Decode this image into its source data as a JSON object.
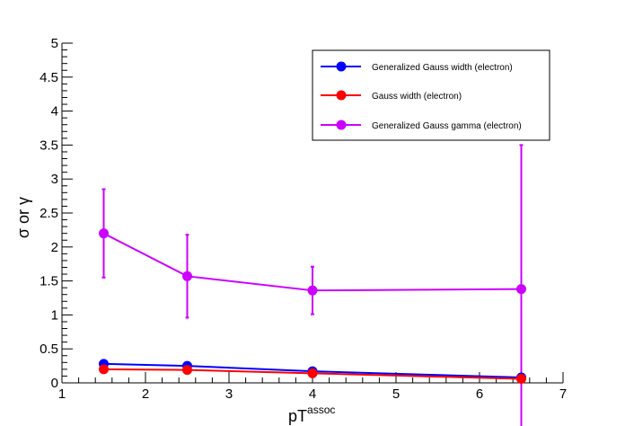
{
  "chart_data": {
    "type": "line",
    "title": "",
    "xlabel": "pT",
    "xlabel_superscript": "assoc",
    "ylabel": "σ or γ",
    "xlim": [
      1,
      7
    ],
    "ylim": [
      0,
      5
    ],
    "x_ticks": [
      "1",
      "2",
      "3",
      "4",
      "5",
      "6",
      "7"
    ],
    "y_ticks": [
      "0",
      "0.5",
      "1",
      "1.5",
      "2",
      "2.5",
      "3",
      "3.5",
      "4",
      "4.5",
      "5"
    ],
    "grid": false,
    "legend_position": "top-right",
    "series": [
      {
        "name": "Generalized Gauss width (electron)",
        "color": "#0000ff",
        "x": [
          1.5,
          2.5,
          4,
          6.5
        ],
        "y": [
          0.28,
          0.25,
          0.17,
          0.08
        ],
        "yerr": [
          0,
          0,
          0,
          0
        ]
      },
      {
        "name": "Gauss width (electron)",
        "color": "#ff0000",
        "x": [
          1.5,
          2.5,
          4,
          6.5
        ],
        "y": [
          0.2,
          0.19,
          0.14,
          0.06
        ],
        "yerr": [
          0,
          0,
          0,
          0
        ]
      },
      {
        "name": "Generalized Gauss gamma (electron)",
        "color": "#cc00ff",
        "x": [
          1.5,
          2.5,
          4,
          6.5
        ],
        "y": [
          2.2,
          1.57,
          1.36,
          1.38
        ],
        "yerr": [
          0.65,
          0.61,
          0.35,
          2.12
        ]
      }
    ]
  }
}
